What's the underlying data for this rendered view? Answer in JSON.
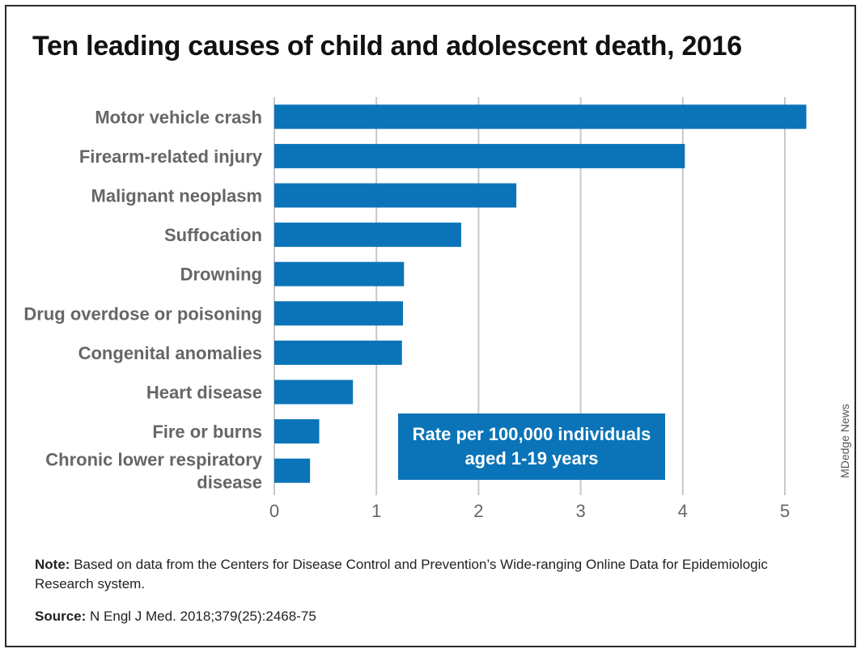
{
  "title": "Ten leading causes of child and adolescent death, 2016",
  "credit": "MDedge News",
  "note": {
    "label": "Note:",
    "text": "Based on data from the Centers for Disease Control and Prevention’s Wide-ranging Online Data for Epidemiologic Research system."
  },
  "source": {
    "label": "Source:",
    "text": "N Engl J Med. 2018;379(25):2468-75"
  },
  "colors": {
    "bar": "#0b74b8",
    "grid": "#c8c8c8",
    "label": "#666666"
  },
  "chart_data": {
    "type": "bar",
    "orientation": "horizontal",
    "categories": [
      [
        "Motor vehicle crash"
      ],
      [
        "Firearm-related injury"
      ],
      [
        "Malignant neoplasm"
      ],
      [
        "Suffocation"
      ],
      [
        "Drowning"
      ],
      [
        "Drug overdose or poisoning"
      ],
      [
        "Congenital anomalies"
      ],
      [
        "Heart disease"
      ],
      [
        "Fire or burns"
      ],
      [
        "Chronic lower respiratory",
        "disease"
      ]
    ],
    "values": [
      5.21,
      4.02,
      2.37,
      1.83,
      1.27,
      1.26,
      1.25,
      0.77,
      0.44,
      0.35
    ],
    "xlim": [
      0,
      5
    ],
    "xticks": [
      0,
      1,
      2,
      3,
      4,
      5
    ],
    "grid": true,
    "legend": {
      "lines": [
        "Rate per 100,000 individuals",
        "aged 1-19 years"
      ],
      "placement": "bottom-right"
    }
  }
}
